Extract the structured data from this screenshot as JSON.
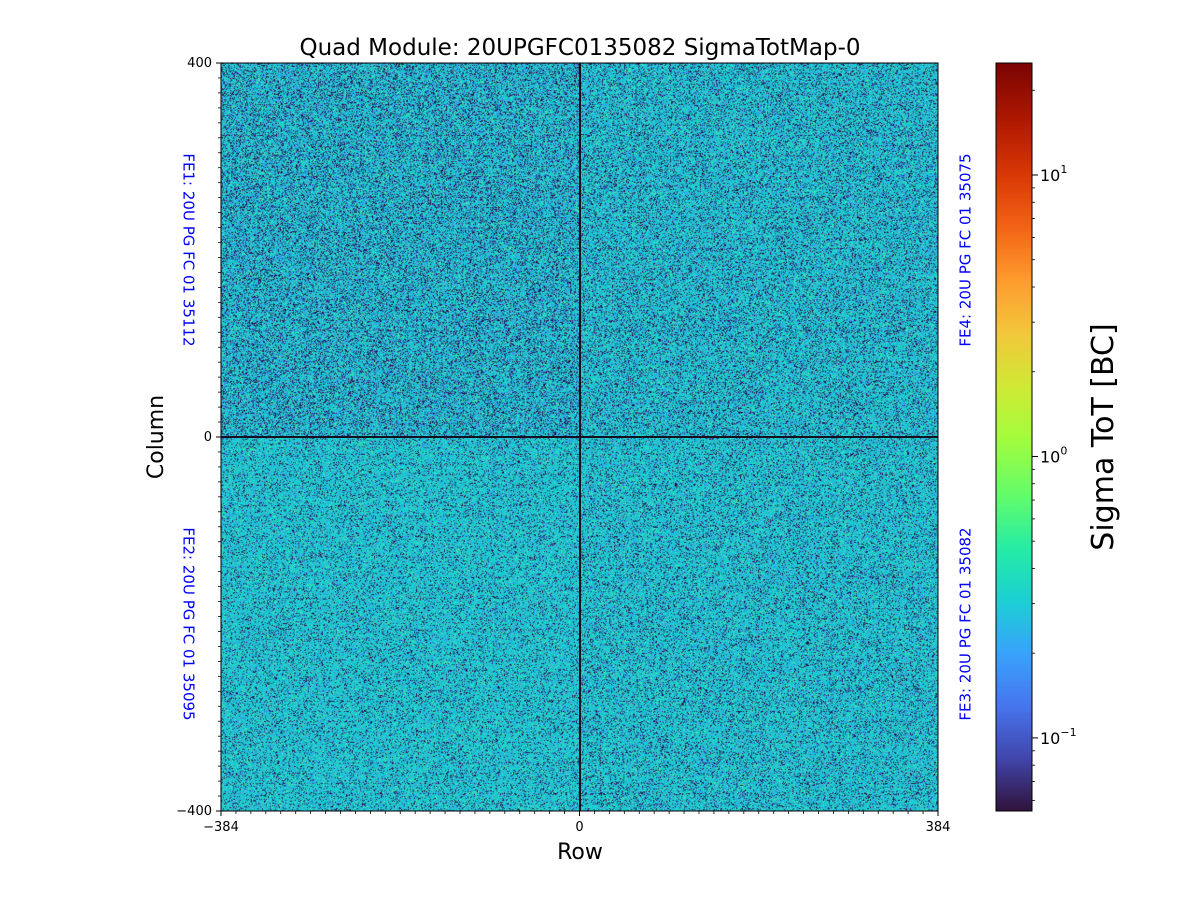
{
  "chart_data": {
    "type": "heatmap",
    "title": "Quad Module: 20UPGFC0135082 SigmaTotMap-0",
    "xlabel": "Row",
    "ylabel": "Column",
    "xlim": [
      -384,
      384
    ],
    "ylim": [
      -400,
      400
    ],
    "x_ticks": [
      {
        "value": -384,
        "label": "−384"
      },
      {
        "value": 0,
        "label": "0"
      },
      {
        "value": 384,
        "label": "384"
      }
    ],
    "y_ticks": [
      {
        "value": 400,
        "label": "400"
      },
      {
        "value": 0,
        "label": "0"
      },
      {
        "value": -400,
        "label": "−400"
      }
    ],
    "colorbar": {
      "label": "Sigma ToT [BC]",
      "scale": "log",
      "range": [
        0.055,
        25
      ],
      "colormap": "turbo",
      "ticks": [
        {
          "value": 0.1,
          "base": "10",
          "exp": "−1"
        },
        {
          "value": 1,
          "base": "10",
          "exp": "0"
        },
        {
          "value": 10,
          "base": "10",
          "exp": "1"
        }
      ]
    },
    "quadrants": [
      {
        "name": "FE1: 20U PG FC 01 35112",
        "position": "top-left",
        "typical_value": 0.22
      },
      {
        "name": "FE4: 20U PG FC 01 35075",
        "position": "top-right",
        "typical_value": 0.25
      },
      {
        "name": "FE2: 20U PG FC 01 35095",
        "position": "bottom-left",
        "typical_value": 0.3
      },
      {
        "name": "FE3: 20U PG FC 01 35082",
        "position": "bottom-right",
        "typical_value": 0.28
      }
    ],
    "grid": false,
    "legend": "none"
  }
}
